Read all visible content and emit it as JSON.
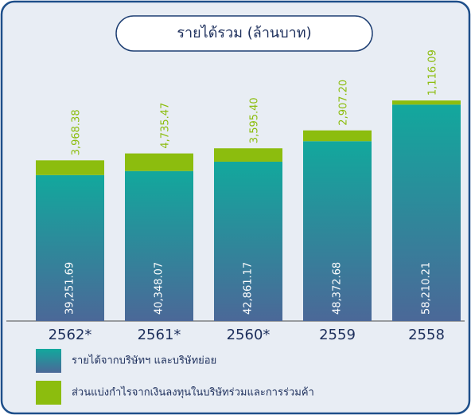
{
  "chart_data": {
    "type": "stacked_bar",
    "title": "รายได้รวม (ล้านบาท)",
    "categories": [
      "2562*",
      "2561*",
      "2560*",
      "2559",
      "2558"
    ],
    "series": [
      {
        "name": "รายได้จากบริษัทฯ และบริษัทย่อย",
        "color": "#12a89d",
        "values": [
          39251.69,
          40348.07,
          42861.17,
          48372.68,
          58210.21
        ],
        "value_labels": [
          "39,251.69",
          "40,348.07",
          "42,861.17",
          "48,372.68",
          "58,210.21"
        ]
      },
      {
        "name": "ส่วนแบ่งกำไรจากเงินลงทุนในบริษัทร่วมและการร่วมค้า",
        "color": "#8cbd0e",
        "values": [
          3968.38,
          4735.47,
          3595.4,
          2907.2,
          1116.09
        ],
        "value_labels": [
          "3,968.38",
          "4,735.47",
          "3,595.40",
          "2,907.20",
          "1,116.09"
        ]
      }
    ],
    "ylim": [
      0,
      66000
    ]
  }
}
